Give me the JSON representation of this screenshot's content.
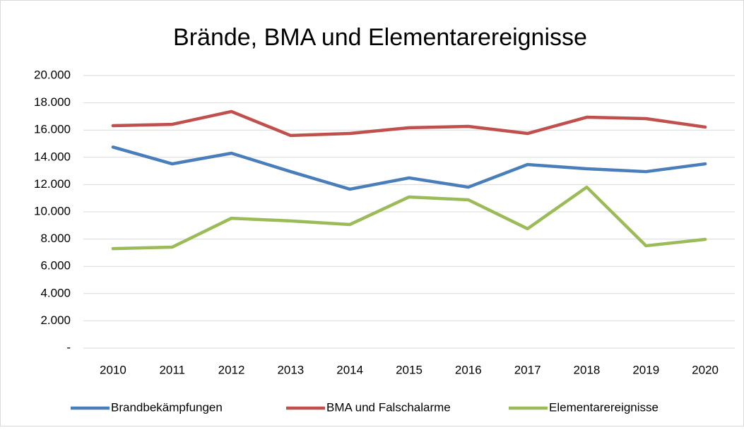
{
  "chart_data": {
    "type": "line",
    "title": "Brände, BMA und Elementarereignisse",
    "categories": [
      "2010",
      "2011",
      "2012",
      "2013",
      "2014",
      "2015",
      "2016",
      "2017",
      "2018",
      "2019",
      "2020"
    ],
    "series": [
      {
        "name": "Brandbekämpfungen",
        "color": "#4a7ebb",
        "values": [
          14750,
          13520,
          14300,
          12950,
          11660,
          12490,
          11810,
          13470,
          13160,
          12950,
          13520
        ]
      },
      {
        "name": "BMA und Falschalarme",
        "color": "#c0504d",
        "values": [
          16320,
          16420,
          17360,
          15600,
          15750,
          16170,
          16270,
          15750,
          16940,
          16840,
          16220
        ]
      },
      {
        "name": "Elementarereignisse",
        "color": "#9bbb59",
        "values": [
          7300,
          7410,
          9530,
          9330,
          9070,
          11090,
          10880,
          8760,
          11810,
          7510,
          7980
        ]
      }
    ],
    "ylim": [
      0,
      20000
    ],
    "yticks": [
      {
        "value": 0,
        "label": "-"
      },
      {
        "value": 2000,
        "label": "2.000"
      },
      {
        "value": 4000,
        "label": "4.000"
      },
      {
        "value": 6000,
        "label": "6.000"
      },
      {
        "value": 8000,
        "label": "8.000"
      },
      {
        "value": 10000,
        "label": "10.000"
      },
      {
        "value": 12000,
        "label": "12.000"
      },
      {
        "value": 14000,
        "label": "14.000"
      },
      {
        "value": 16000,
        "label": "16.000"
      },
      {
        "value": 18000,
        "label": "18.000"
      },
      {
        "value": 20000,
        "label": "20.000"
      }
    ],
    "grid": true,
    "legend": "bottom"
  }
}
